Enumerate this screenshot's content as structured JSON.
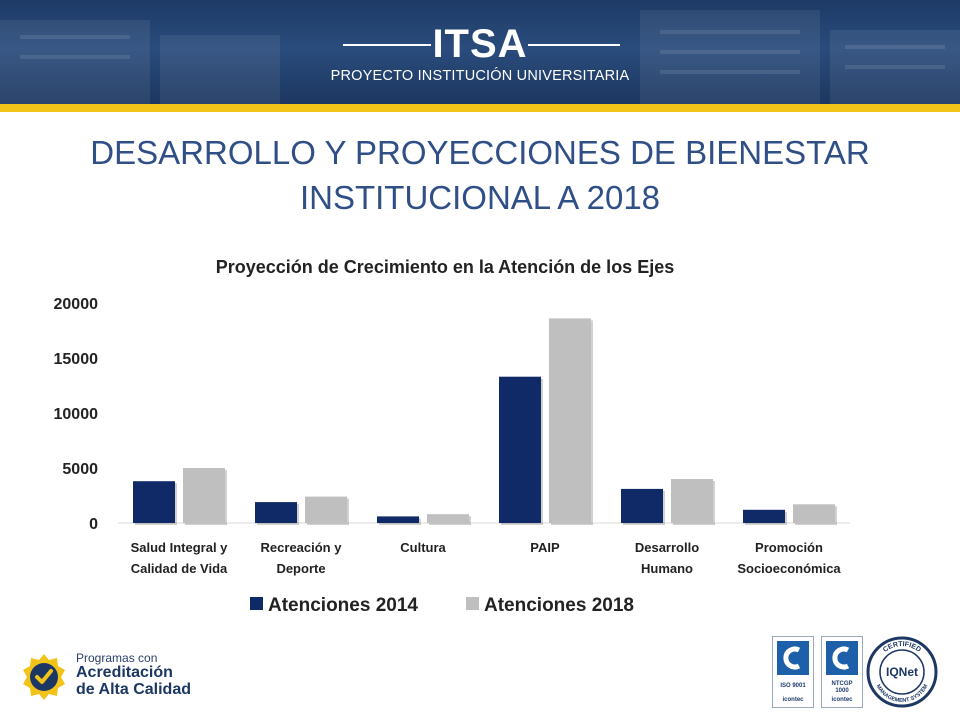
{
  "header": {
    "brand": "ITSA",
    "subtitle": "PROYECTO INSTITUCIÓN UNIVERSITARIA"
  },
  "slide": {
    "title_line1": "DESARROLLO Y PROYECCIONES DE BIENESTAR",
    "title_line2": "INSTITUCIONAL A 2018"
  },
  "chart_data": {
    "type": "bar",
    "title": "Proyección de Crecimiento en la Atención de los Ejes",
    "categories": [
      [
        "Salud Integral y",
        "Calidad de Vida"
      ],
      [
        "Recreación y",
        "Deporte"
      ],
      [
        "Cultura"
      ],
      [
        "PAIP"
      ],
      [
        "Desarrollo",
        "Humano"
      ],
      [
        "Promoción",
        "Socioeconómica"
      ]
    ],
    "series": [
      {
        "name": "Atenciones 2014",
        "color": "#0f2a66",
        "values": [
          3800,
          1900,
          600,
          13300,
          3100,
          1200
        ]
      },
      {
        "name": "Atenciones 2018",
        "color": "#bfbfbf",
        "values": [
          5000,
          2400,
          800,
          18600,
          4000,
          1700
        ]
      }
    ],
    "yticks": [
      "0",
      "5000",
      "10000",
      "15000",
      "20000"
    ],
    "ylim": [
      0,
      20000
    ],
    "xlabel": "",
    "ylabel": "",
    "grid": false,
    "legend": "bottom"
  },
  "footer": {
    "accreditation": [
      "Programas con",
      "Acreditación",
      "de Alta Calidad"
    ],
    "certs": [
      {
        "label": "ISO 9001",
        "issuer": "icontec",
        "icon": "icontec-certification-icon"
      },
      {
        "label": [
          "NTCGP",
          "1000"
        ],
        "issuer": "icontec",
        "icon": "icontec-certification-icon"
      }
    ],
    "iqnet": {
      "center": "IQNet",
      "top_text": "CERTIFIED",
      "bottom_text": "MANAGEMENT SYSTEM",
      "icon": "iqnet-seal-icon"
    }
  }
}
